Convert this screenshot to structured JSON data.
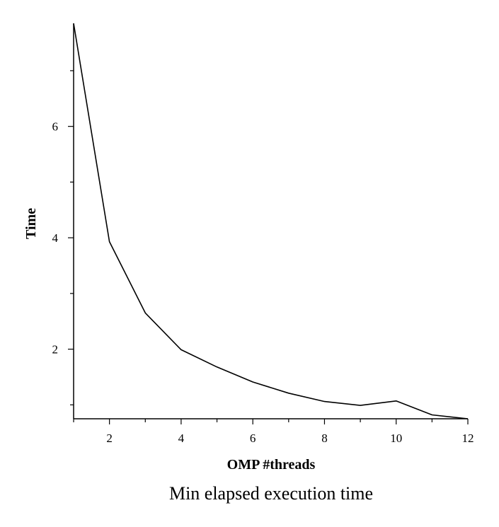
{
  "chart_data": {
    "type": "line",
    "caption": "Min elapsed execution time",
    "xlabel": "OMP #threads",
    "ylabel": "Time",
    "xlim": [
      1,
      12
    ],
    "ylim": [
      0.75,
      7.85
    ],
    "x_ticks": [
      2,
      4,
      6,
      8,
      10,
      12
    ],
    "y_ticks": [
      2,
      4,
      6
    ],
    "grid": false,
    "series": [
      {
        "color": "#000000",
        "x": [
          1,
          2,
          3,
          4,
          5,
          6,
          7,
          8,
          9,
          10,
          11,
          12
        ],
        "values": [
          7.85,
          3.93,
          2.65,
          1.99,
          1.68,
          1.41,
          1.21,
          1.06,
          0.99,
          1.07,
          0.82,
          0.75
        ]
      }
    ]
  }
}
